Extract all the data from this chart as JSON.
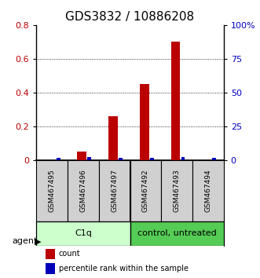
{
  "title": "GDS3832 / 10886208",
  "samples": [
    "GSM467495",
    "GSM467496",
    "GSM467497",
    "GSM467492",
    "GSM467493",
    "GSM467494"
  ],
  "count_values": [
    0.0,
    0.05,
    0.26,
    0.45,
    0.7,
    0.0
  ],
  "percentile_values": [
    0.012,
    0.016,
    0.012,
    0.012,
    0.016,
    0.012
  ],
  "ylim_left": [
    0,
    0.8
  ],
  "ylim_right": [
    0,
    100
  ],
  "yticks_left": [
    0,
    0.2,
    0.4,
    0.6,
    0.8
  ],
  "ytick_labels_left": [
    "0",
    "0.2",
    "0.4",
    "0.6",
    "0.8"
  ],
  "yticks_right": [
    0,
    25,
    50,
    75,
    100
  ],
  "ytick_labels_right": [
    "0",
    "25",
    "50",
    "75",
    "100%"
  ],
  "count_color": "#bb0000",
  "percentile_color": "#0000bb",
  "group1_label": "C1q",
  "group2_label": "control, untreated",
  "group1_bg": "#ccffcc",
  "group2_bg": "#55cc55",
  "agent_label": "agent",
  "legend_count": "count",
  "legend_percentile": "percentile rank within the sample",
  "title_fontsize": 11,
  "axis_fontsize": 8,
  "tick_labelsize": 8
}
